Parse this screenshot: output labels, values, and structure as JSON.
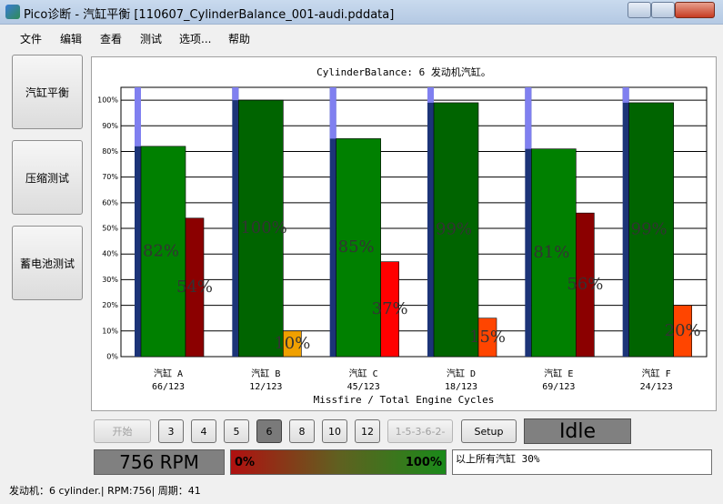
{
  "window": {
    "title": "Pico诊断 - 汽缸平衡 [110607_CylinderBalance_001-audi.pddata]"
  },
  "menu": [
    "文件",
    "编辑",
    "查看",
    "测试",
    "选项...",
    "帮助"
  ],
  "sidebar": [
    "汽缸平衡",
    "压缩测试",
    "蓄电池测试"
  ],
  "chart_data": {
    "type": "bar",
    "title": "CylinderBalance: 6 发动机汽缸。",
    "x_label": "Missfire / Total Engine Cycles",
    "categories": [
      "汽缸 A",
      "汽缸 B",
      "汽缸 C",
      "汽缸 D",
      "汽缸 E",
      "汽缸 F"
    ],
    "cycle_labels": [
      "66/123",
      "12/123",
      "45/123",
      "18/123",
      "69/123",
      "24/123"
    ],
    "ylim": [
      0,
      105
    ],
    "yticks": [
      {
        "value": 0,
        "label": "0%"
      },
      {
        "value": 10,
        "label": "10%"
      },
      {
        "value": 20,
        "label": "20%"
      },
      {
        "value": 30,
        "label": "30%"
      },
      {
        "value": 40,
        "label": "40%"
      },
      {
        "value": 50,
        "label": "50%"
      },
      {
        "value": 60,
        "label": "60%"
      },
      {
        "value": 70,
        "label": "70%"
      },
      {
        "value": 80,
        "label": "80%"
      },
      {
        "value": 90,
        "label": "90%"
      },
      {
        "value": 100,
        "label": "100%"
      }
    ],
    "grid": true,
    "series": [
      {
        "colors": [
          "#008000",
          "#006400",
          "#008000",
          "#006400",
          "#008000",
          "#006400"
        ],
        "values": [
          82,
          100,
          85,
          99,
          81,
          99
        ],
        "value_labels": [
          "82%",
          "100%",
          "85%",
          "99%",
          "81%",
          "99%"
        ]
      },
      {
        "colors": [
          "#8b0000",
          "#f0a000",
          "#ff0000",
          "#ff4500",
          "#8b0000",
          "#ff4500"
        ],
        "values": [
          54,
          10,
          37,
          15,
          56,
          20
        ],
        "value_labels": [
          "54%",
          "10%",
          "37%",
          "15%",
          "56%",
          "20%"
        ]
      }
    ]
  },
  "controls": {
    "start": "开始",
    "cylinder_buttons": [
      "3",
      "4",
      "5",
      "6",
      "8",
      "10",
      "12"
    ],
    "firing_order": "1-5-3-6-2-",
    "setup": "Setup",
    "state": "Idle",
    "rpm": "756 RPM",
    "progress_min": "0%",
    "progress_max": "100%",
    "message": "以上所有汽缸 30%"
  },
  "status_bar": "发动机：6 cylinder.| RPM:756| 周期：41"
}
